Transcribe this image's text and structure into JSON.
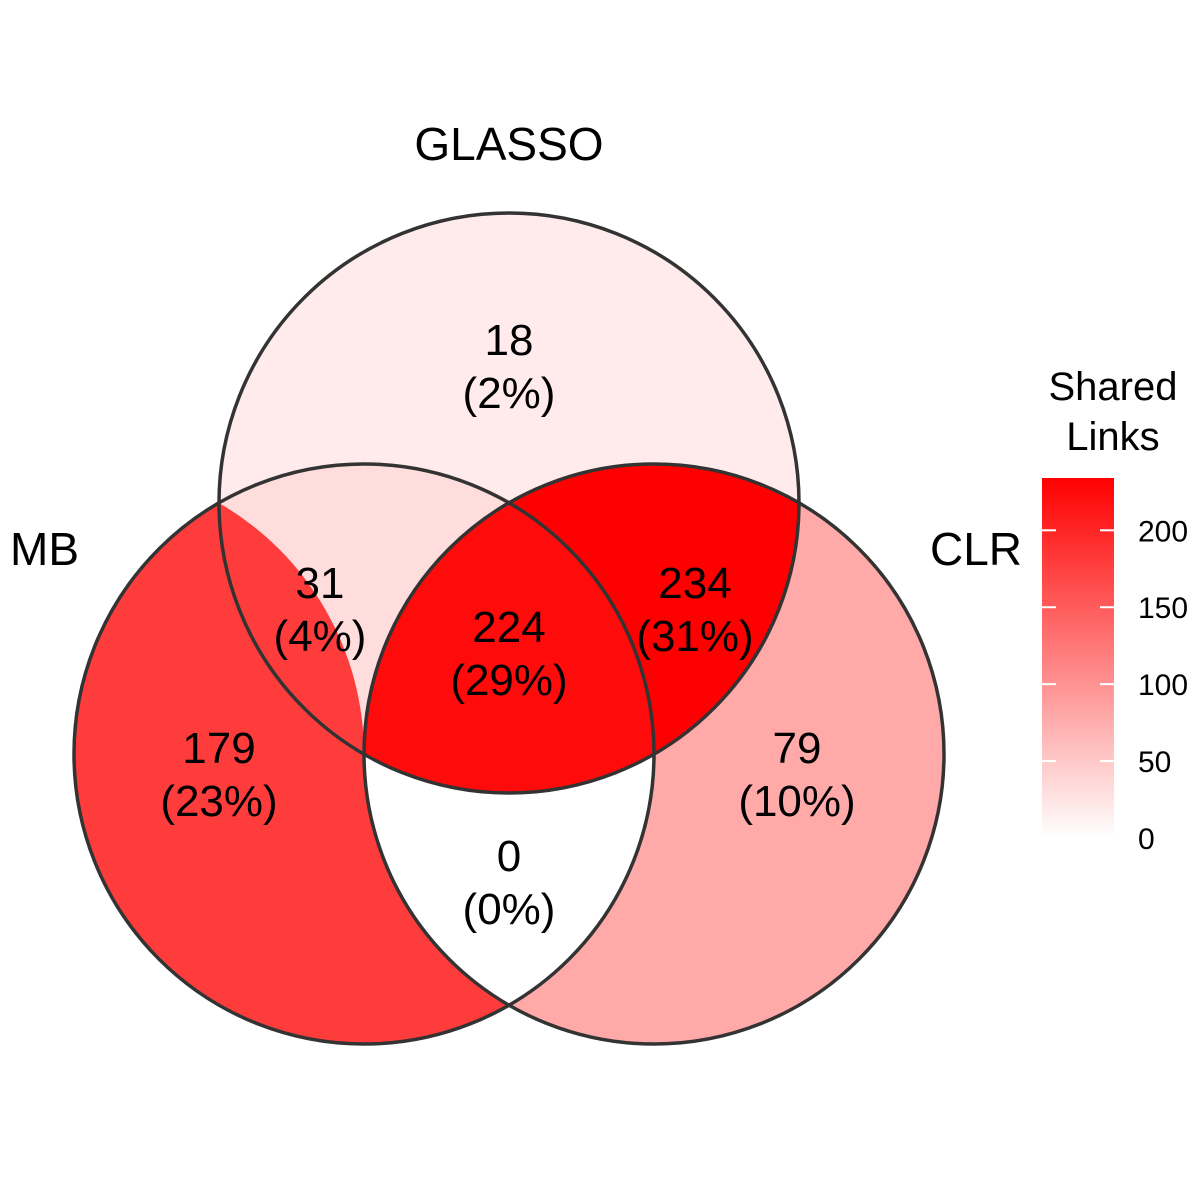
{
  "chart_data": {
    "type": "venn",
    "sets": [
      "GLASSO",
      "MB",
      "CLR"
    ],
    "regions": [
      {
        "sets": [
          "GLASSO"
        ],
        "count": 18,
        "pct": "(2%)"
      },
      {
        "sets": [
          "GLASSO",
          "MB"
        ],
        "count": 31,
        "pct": "(4%)"
      },
      {
        "sets": [
          "GLASSO",
          "MB",
          "CLR"
        ],
        "count": 224,
        "pct": "(29%)"
      },
      {
        "sets": [
          "GLASSO",
          "CLR"
        ],
        "count": 234,
        "pct": "(31%)"
      },
      {
        "sets": [
          "MB"
        ],
        "count": 179,
        "pct": "(23%)"
      },
      {
        "sets": [
          "CLR"
        ],
        "count": 79,
        "pct": "(10%)"
      },
      {
        "sets": [
          "MB",
          "CLR"
        ],
        "count": 0,
        "pct": "(0%)"
      }
    ],
    "legend": {
      "title_lines": [
        "Shared",
        "Links"
      ],
      "ticks": [
        0,
        50,
        100,
        150,
        200
      ],
      "range": [
        0,
        234
      ],
      "low_color": "#ffffff",
      "high_color": "#ff0000"
    }
  }
}
